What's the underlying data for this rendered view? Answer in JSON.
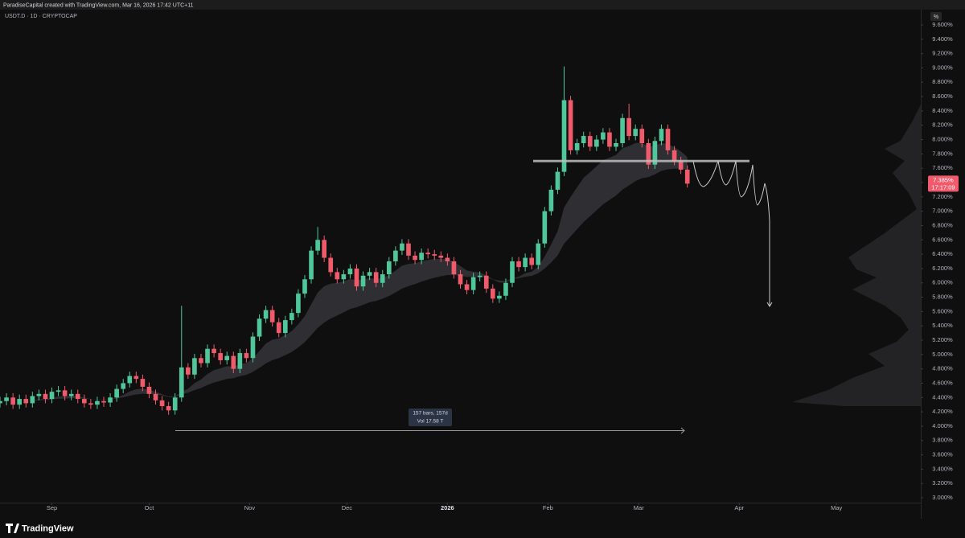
{
  "header": {
    "credit": "ParadiseCapital created with TradingView.com, Mar 16, 2026 17:42 UTC+11",
    "symbol": "USDT.D · 1D · CRYPTOCAP",
    "scale_mode": "%"
  },
  "footer": {
    "brand": "TradingView"
  },
  "chart_data": {
    "type": "candlestick",
    "up_color": "#4fc79a",
    "down_color": "#ef5b6b",
    "grid": false,
    "x": [
      0,
      2,
      4,
      6,
      8,
      10,
      12,
      14,
      16,
      18,
      20,
      22,
      24,
      26,
      28,
      30,
      32,
      34,
      36,
      38,
      40,
      42,
      44,
      46,
      48,
      50,
      52,
      54,
      56,
      58,
      60,
      62,
      64,
      66,
      68,
      70,
      72,
      74,
      76,
      78,
      80,
      82,
      84,
      86,
      88,
      90,
      92,
      94,
      96,
      98,
      100,
      102,
      104,
      106,
      108,
      110,
      112,
      114,
      116,
      118,
      120,
      122,
      124,
      126,
      128,
      130,
      132,
      134,
      136,
      138,
      140,
      142,
      144,
      146,
      148,
      150,
      152,
      154,
      156,
      158,
      160,
      162,
      164,
      166,
      168,
      170,
      172,
      174,
      176,
      178,
      180,
      182,
      184,
      186,
      188,
      190,
      192,
      194,
      196,
      198,
      200,
      202,
      204,
      206,
      208,
      210,
      212
    ],
    "open": [
      4.32,
      4.35,
      4.4,
      4.3,
      4.38,
      4.32,
      4.42,
      4.45,
      4.38,
      4.48,
      4.5,
      4.42,
      4.45,
      4.38,
      4.32,
      4.3,
      4.35,
      4.33,
      4.4,
      4.52,
      4.6,
      4.7,
      4.66,
      4.55,
      4.45,
      4.36,
      4.28,
      4.22,
      4.4,
      4.82,
      4.72,
      4.95,
      4.88,
      5.08,
      5.02,
      4.92,
      4.98,
      4.8,
      5.02,
      4.95,
      5.25,
      5.5,
      5.62,
      5.45,
      5.3,
      5.48,
      5.58,
      5.85,
      6.05,
      6.45,
      6.6,
      6.35,
      6.15,
      6.05,
      6.12,
      6.2,
      5.95,
      6.1,
      6.15,
      6.0,
      6.12,
      6.3,
      6.45,
      6.55,
      6.38,
      6.32,
      6.42,
      6.4,
      6.38,
      6.35,
      6.3,
      6.12,
      5.98,
      5.9,
      6.08,
      6.1,
      5.92,
      5.78,
      5.82,
      6.0,
      6.3,
      6.22,
      6.35,
      6.25,
      6.55,
      7.0,
      7.3,
      7.55,
      8.55,
      7.85,
      7.95,
      8.05,
      7.9,
      8.0,
      8.1,
      7.9,
      7.95,
      8.3,
      8.05,
      8.15,
      7.95,
      7.65,
      7.98,
      8.15,
      7.85,
      7.7,
      7.58
    ],
    "high": [
      4.41,
      4.46,
      4.46,
      4.44,
      4.44,
      4.48,
      4.51,
      4.51,
      4.54,
      4.56,
      4.56,
      4.51,
      4.51,
      4.44,
      4.38,
      4.41,
      4.41,
      4.46,
      4.58,
      4.66,
      4.76,
      4.76,
      4.72,
      4.61,
      4.51,
      4.42,
      4.34,
      4.46,
      5.68,
      4.88,
      5.01,
      5.01,
      5.14,
      5.14,
      5.08,
      5.04,
      5.04,
      5.08,
      5.08,
      5.31,
      5.56,
      5.68,
      5.68,
      5.51,
      5.54,
      5.64,
      5.91,
      6.11,
      6.51,
      6.78,
      6.66,
      6.41,
      6.21,
      6.18,
      6.26,
      6.26,
      6.16,
      6.21,
      6.21,
      6.18,
      6.36,
      6.51,
      6.61,
      6.61,
      6.44,
      6.48,
      6.48,
      6.46,
      6.44,
      6.41,
      6.36,
      6.18,
      6.04,
      6.14,
      6.16,
      6.16,
      5.98,
      5.88,
      6.06,
      6.36,
      6.36,
      6.41,
      6.41,
      6.61,
      7.06,
      7.36,
      7.61,
      9.02,
      8.61,
      8.01,
      8.11,
      8.11,
      8.06,
      8.16,
      8.16,
      8.01,
      8.36,
      8.5,
      8.21,
      8.21,
      8.01,
      8.04,
      8.21,
      8.21,
      7.91,
      7.76,
      7.64
    ],
    "low": [
      4.26,
      4.29,
      4.24,
      4.24,
      4.26,
      4.26,
      4.36,
      4.32,
      4.32,
      4.42,
      4.36,
      4.36,
      4.32,
      4.26,
      4.24,
      4.24,
      4.27,
      4.27,
      4.34,
      4.46,
      4.54,
      4.6,
      4.49,
      4.39,
      4.3,
      4.22,
      4.16,
      4.16,
      4.34,
      4.66,
      4.66,
      4.82,
      4.82,
      4.96,
      4.86,
      4.86,
      4.74,
      4.74,
      4.89,
      4.89,
      5.19,
      5.44,
      5.39,
      5.24,
      5.24,
      5.42,
      5.52,
      5.79,
      5.99,
      6.39,
      6.29,
      6.09,
      5.99,
      5.99,
      6.06,
      5.89,
      5.89,
      6.04,
      5.94,
      5.94,
      6.06,
      6.24,
      6.39,
      6.32,
      6.26,
      6.26,
      6.34,
      6.32,
      6.29,
      6.24,
      6.06,
      5.92,
      5.84,
      5.84,
      6.02,
      5.86,
      5.72,
      5.72,
      5.76,
      5.94,
      6.16,
      6.16,
      6.19,
      6.19,
      6.49,
      6.94,
      7.24,
      7.49,
      7.79,
      7.79,
      7.89,
      7.84,
      7.84,
      7.94,
      7.84,
      7.84,
      7.89,
      7.99,
      7.99,
      7.89,
      7.59,
      7.59,
      7.92,
      7.79,
      7.64,
      7.52,
      7.33
    ],
    "close": [
      4.35,
      4.4,
      4.3,
      4.38,
      4.32,
      4.42,
      4.45,
      4.38,
      4.48,
      4.5,
      4.42,
      4.45,
      4.38,
      4.32,
      4.3,
      4.35,
      4.33,
      4.4,
      4.52,
      4.6,
      4.7,
      4.66,
      4.55,
      4.45,
      4.36,
      4.28,
      4.22,
      4.4,
      4.82,
      4.72,
      4.95,
      4.88,
      5.08,
      5.02,
      4.92,
      4.98,
      4.8,
      5.02,
      4.95,
      5.25,
      5.5,
      5.62,
      5.45,
      5.3,
      5.48,
      5.58,
      5.85,
      6.05,
      6.45,
      6.6,
      6.35,
      6.15,
      6.05,
      6.12,
      6.2,
      5.95,
      6.1,
      6.15,
      6.0,
      6.12,
      6.3,
      6.45,
      6.55,
      6.38,
      6.32,
      6.42,
      6.4,
      6.38,
      6.35,
      6.3,
      6.12,
      5.98,
      5.9,
      6.08,
      6.1,
      5.92,
      5.78,
      5.82,
      6.0,
      6.3,
      6.22,
      6.35,
      6.25,
      6.55,
      7.0,
      7.3,
      7.55,
      8.55,
      7.85,
      7.95,
      8.05,
      7.9,
      8.0,
      8.1,
      7.9,
      7.95,
      8.3,
      8.05,
      8.15,
      7.95,
      7.65,
      7.98,
      8.15,
      7.85,
      7.7,
      7.58,
      7.385
    ],
    "last_price_label": "7.385%",
    "countdown": "17:17:09",
    "levels": [
      7.7
    ],
    "measure": {
      "bars": "157 bars, 157d",
      "volume": "Vol 17.58 T"
    },
    "xlim": [
      0,
      284
    ],
    "xticks": [
      {
        "value": 16,
        "label": "Sep"
      },
      {
        "value": 46,
        "label": "Oct"
      },
      {
        "value": 77,
        "label": "Nov"
      },
      {
        "value": 107,
        "label": "Dec"
      },
      {
        "value": 138,
        "label": "2026"
      },
      {
        "value": 169,
        "label": "Feb"
      },
      {
        "value": 197,
        "label": "Mar"
      },
      {
        "value": 228,
        "label": "Apr"
      },
      {
        "value": 258,
        "label": "May"
      }
    ],
    "ylim": [
      2.933,
      9.813
    ],
    "yticks": [
      {
        "value": 3.0,
        "label": "3.000%"
      },
      {
        "value": 3.2,
        "label": "3.200%"
      },
      {
        "value": 3.4,
        "label": "3.400%"
      },
      {
        "value": 3.6,
        "label": "3.600%"
      },
      {
        "value": 3.8,
        "label": "3.800%"
      },
      {
        "value": 4.0,
        "label": "4.000%"
      },
      {
        "value": 4.2,
        "label": "4.200%"
      },
      {
        "value": 4.4,
        "label": "4.400%"
      },
      {
        "value": 4.6,
        "label": "4.600%"
      },
      {
        "value": 4.8,
        "label": "4.800%"
      },
      {
        "value": 5.0,
        "label": "5.000%"
      },
      {
        "value": 5.2,
        "label": "5.200%"
      },
      {
        "value": 5.4,
        "label": "5.400%"
      },
      {
        "value": 5.6,
        "label": "5.600%"
      },
      {
        "value": 5.8,
        "label": "5.800%"
      },
      {
        "value": 6.0,
        "label": "6.000%"
      },
      {
        "value": 6.2,
        "label": "6.200%"
      },
      {
        "value": 6.4,
        "label": "6.400%"
      },
      {
        "value": 6.6,
        "label": "6.600%"
      },
      {
        "value": 6.8,
        "label": "6.800%"
      },
      {
        "value": 7.0,
        "label": "7.000%"
      },
      {
        "value": 7.2,
        "label": "7.200%"
      },
      {
        "value": 7.4,
        "label": "7.400%"
      },
      {
        "value": 7.6,
        "label": "7.600%"
      },
      {
        "value": 7.8,
        "label": "7.800%"
      },
      {
        "value": 8.0,
        "label": "8.000%"
      },
      {
        "value": 8.2,
        "label": "8.200%"
      },
      {
        "value": 8.4,
        "label": "8.400%"
      },
      {
        "value": 8.6,
        "label": "8.600%"
      },
      {
        "value": 8.8,
        "label": "8.800%"
      },
      {
        "value": 9.0,
        "label": "9.000%"
      },
      {
        "value": 9.2,
        "label": "9.200%"
      },
      {
        "value": 9.4,
        "label": "9.400%"
      },
      {
        "value": 9.6,
        "label": "9.600%"
      }
    ]
  }
}
